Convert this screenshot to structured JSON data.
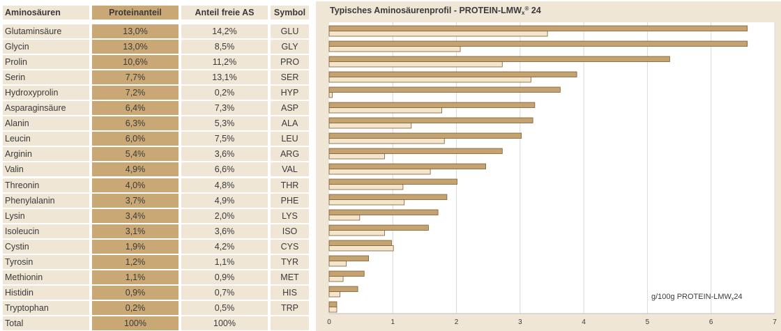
{
  "table": {
    "headers": {
      "name": "Aminosäuren",
      "protein_share": "Proteinanteil",
      "free_share": "Anteil freie AS",
      "symbol": "Symbol"
    },
    "rows": [
      {
        "name": "Glutaminsäure",
        "protein_share": "13,0%",
        "free_share": "14,2%",
        "symbol": "GLU"
      },
      {
        "name": "Glycin",
        "protein_share": "13,0%",
        "free_share": "8,5%",
        "symbol": "GLY"
      },
      {
        "name": "Prolin",
        "protein_share": "10,6%",
        "free_share": "11,2%",
        "symbol": "PRO"
      },
      {
        "name": "Serin",
        "protein_share": "7,7%",
        "free_share": "13,1%",
        "symbol": "SER"
      },
      {
        "name": "Hydroxyprolin",
        "protein_share": "7,2%",
        "free_share": "0,2%",
        "symbol": "HYP"
      },
      {
        "name": "Asparaginsäure",
        "protein_share": "6,4%",
        "free_share": "7,3%",
        "symbol": "ASP"
      },
      {
        "name": "Alanin",
        "protein_share": "6,3%",
        "free_share": "5,3%",
        "symbol": "ALA"
      },
      {
        "name": "Leucin",
        "protein_share": "6,0%",
        "free_share": "7,5%",
        "symbol": "LEU"
      },
      {
        "name": "Arginin",
        "protein_share": "5,4%",
        "free_share": "3,6%",
        "symbol": "ARG"
      },
      {
        "name": "Valin",
        "protein_share": "4,9%",
        "free_share": "6,6%",
        "symbol": "VAL"
      },
      {
        "name": "Threonin",
        "protein_share": "4,0%",
        "free_share": "4,8%",
        "symbol": "THR"
      },
      {
        "name": "Phenylalanin",
        "protein_share": "3,7%",
        "free_share": "4,9%",
        "symbol": "PHE"
      },
      {
        "name": "Lysin",
        "protein_share": "3,4%",
        "free_share": "2,0%",
        "symbol": "LYS"
      },
      {
        "name": "Isoleucin",
        "protein_share": "3,1%",
        "free_share": "3,6%",
        "symbol": "ISO"
      },
      {
        "name": "Cystin",
        "protein_share": "1,9%",
        "free_share": "4,2%",
        "symbol": "CYS"
      },
      {
        "name": "Tyrosin",
        "protein_share": "1,2%",
        "free_share": "1,1%",
        "symbol": "TYR"
      },
      {
        "name": "Methionin",
        "protein_share": "1,1%",
        "free_share": "0,9%",
        "symbol": "MET"
      },
      {
        "name": "Histidin",
        "protein_share": "0,9%",
        "free_share": "0,7%",
        "symbol": "HIS"
      },
      {
        "name": "Tryptophan",
        "protein_share": "0,2%",
        "free_share": "0,5%",
        "symbol": "TRP"
      }
    ],
    "total": {
      "name": "Total",
      "protein_share": "100%",
      "free_share": "100%",
      "symbol": ""
    }
  },
  "chart_data": {
    "type": "bar",
    "orientation": "horizontal",
    "title_main": "Typisches Aminosäurenprofil  - PROTEIN-LMW",
    "title_sub": "x",
    "title_sup": "®",
    "title_tail": " 24",
    "unit_label_main": "g/100g PROTEIN-LMW",
    "unit_label_sub": "x",
    "unit_label_tail": "24",
    "categories": [
      "GLU",
      "GLY",
      "PRO",
      "SER",
      "HYP",
      "ASP",
      "ALA",
      "LEU",
      "ARG",
      "VAL",
      "THR",
      "PHE",
      "LYS",
      "ISO",
      "CYS",
      "TYR",
      "MET",
      "HIS",
      "TRP"
    ],
    "series": [
      {
        "values": [
          6.57,
          6.57,
          5.35,
          3.89,
          3.63,
          3.23,
          3.2,
          3.02,
          2.72,
          2.46,
          2.01,
          1.85,
          1.71,
          1.56,
          0.98,
          0.62,
          0.55,
          0.45,
          0.12
        ]
      },
      {
        "values": [
          3.43,
          2.06,
          2.72,
          3.17,
          0.05,
          1.77,
          1.29,
          1.81,
          0.87,
          1.59,
          1.16,
          1.18,
          0.48,
          0.87,
          1.01,
          0.27,
          0.22,
          0.17,
          0.12
        ]
      }
    ],
    "xlim": [
      0,
      7
    ],
    "xticks": [
      0,
      1,
      2,
      3,
      4,
      5,
      6,
      7
    ],
    "grid": true,
    "colors": {
      "series1": "#c4a371",
      "series2": "#f3e6cc",
      "stroke": "#7b5c32",
      "panel": "#efe6d6",
      "plot": "#ffffff",
      "grid": "#d9d9d9"
    }
  }
}
